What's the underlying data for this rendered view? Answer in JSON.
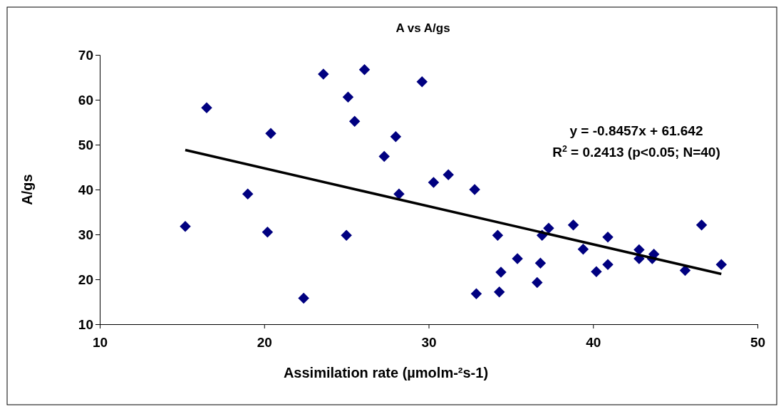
{
  "chart_data": {
    "type": "scatter",
    "title": "A vs A/gs",
    "xlabel": "Assimilation rate (µmolm-²s-1)",
    "ylabel": "A/gs",
    "xlim": [
      10,
      50
    ],
    "xticks": [
      10,
      20,
      30,
      40,
      50
    ],
    "ylim": [
      10,
      70
    ],
    "yticks": [
      10,
      20,
      30,
      40,
      50,
      60,
      70
    ],
    "grid": false,
    "marker": "diamond",
    "series": [
      {
        "color": "#000080",
        "x": [
          15.2,
          16.5,
          19,
          20.2,
          20.4,
          22.4,
          23.6,
          25,
          25.1,
          25.5,
          26.1,
          27.3,
          28,
          28.2,
          29.6,
          30.3,
          31.2,
          32.8,
          32.9,
          34.2,
          34.3,
          34.4,
          35.4,
          36.6,
          36.8,
          36.9,
          37.3,
          38.8,
          39.4,
          40.2,
          40.9,
          40.9,
          42.8,
          42.8,
          43.6,
          43.7,
          45.6,
          46.6,
          47.8
        ],
        "values": [
          31.8,
          58.2,
          39,
          30.5,
          52.5,
          15.8,
          65.7,
          29.8,
          60.6,
          55.2,
          66.7,
          47.4,
          51.8,
          39,
          64,
          41.6,
          43.3,
          40,
          16.8,
          29.8,
          17.2,
          21.6,
          24.6,
          19.3,
          23.6,
          29.8,
          31.4,
          32.1,
          26.7,
          21.7,
          29.4,
          23.3,
          26.6,
          24.6,
          24.6,
          25.6,
          22,
          32.1,
          23.3
        ]
      },
      {
        "type": "line",
        "color": "#000000",
        "line_style": "solid",
        "marker": "none",
        "x": [
          15.2,
          47.8
        ],
        "values": [
          48.8,
          21.2
        ]
      }
    ],
    "annotations": [
      "y = -0.8457x + 61.642",
      "R$^{2}$ = 0.2413 (p<0.05; N=40)"
    ]
  }
}
